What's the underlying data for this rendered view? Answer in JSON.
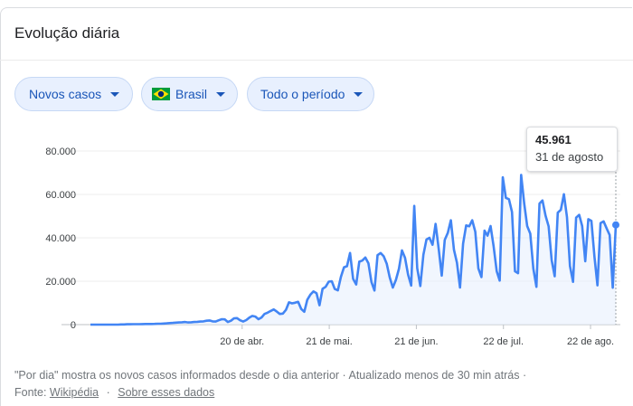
{
  "header": {
    "title": "Evolução diária"
  },
  "filters": {
    "metric_label": "Novos casos",
    "country_label": "Brasil",
    "period_label": "Todo o período",
    "flag_colors": {
      "green": "#009c3b",
      "yellow": "#ffdf00",
      "blue": "#002776"
    }
  },
  "tooltip": {
    "value": "45.961",
    "date": "31 de agosto"
  },
  "footer": {
    "note": "\"Por dia\" mostra os novos casos informados desde o dia anterior · Atualizado menos de 30 min atrás ·",
    "source_prefix": "Fonte:",
    "source_link": "Wikipédia",
    "separator": "·",
    "about_link": "Sobre esses dados"
  },
  "chart_data": {
    "type": "line",
    "line_color": "#4285f4",
    "fill_color": "#e8f0fe",
    "ylim": [
      0,
      80000
    ],
    "y_ticks": [
      0,
      20000,
      40000,
      60000,
      80000
    ],
    "y_tick_labels": [
      "0",
      "20.000",
      "40.000",
      "60.000",
      "80.000"
    ],
    "x_start_date": "2020-02-26",
    "x_ticks": [
      {
        "date": "2020-04-20",
        "label": "20 de abr."
      },
      {
        "date": "2020-05-21",
        "label": "21 de mai."
      },
      {
        "date": "2020-06-21",
        "label": "21 de jun."
      },
      {
        "date": "2020-07-22",
        "label": "22 de jul."
      },
      {
        "date": "2020-08-22",
        "label": "22 de ago."
      }
    ],
    "x_end_date": "2020-08-31",
    "highlight": {
      "date": "2020-08-31",
      "value": 45961
    },
    "series": [
      {
        "values": [
          0,
          0,
          0,
          0,
          0,
          0,
          0,
          0,
          0,
          0,
          100,
          100,
          150,
          150,
          200,
          200,
          200,
          250,
          300,
          300,
          300,
          350,
          400,
          400,
          500,
          600,
          700,
          800,
          900,
          1000,
          1100,
          1200,
          1000,
          1100,
          1200,
          1300,
          1400,
          1500,
          1800,
          1900,
          1500,
          1400,
          2000,
          2500,
          2400,
          1200,
          1800,
          2900,
          3000,
          2000,
          1400,
          2100,
          3200,
          4000,
          3700,
          2500,
          3300,
          4900,
          5500,
          6300,
          7000,
          6000,
          4900,
          5100,
          6800,
          10300,
          9800,
          10100,
          10500,
          7200,
          5900,
          11400,
          13800,
          15300,
          14500,
          8900,
          16500,
          17400,
          19800,
          20000,
          16400,
          15800,
          22000,
          26400,
          26900,
          33000,
          21100,
          18500,
          29000,
          29500,
          30900,
          28300,
          19600,
          15700,
          32000,
          33000,
          31500,
          28000,
          21700,
          17100,
          20600,
          25800,
          34200,
          30800,
          23000,
          18000,
          54700,
          26000,
          17800,
          32200,
          39200,
          40000,
          36800,
          46400,
          35100,
          22600,
          39000,
          42300,
          48100,
          34500,
          28600,
          17100,
          37300,
          45700,
          45300,
          48100,
          42800,
          25900,
          21900,
          43300,
          41000,
          45400,
          36000,
          24600,
          20300,
          67900,
          58400,
          57800,
          51900,
          24600,
          23700,
          69000,
          55800,
          45400,
          41900,
          25800,
          17400,
          55800,
          57200,
          50200,
          45300,
          29600,
          22300,
          51600,
          52900,
          60100,
          49500,
          27000,
          19700,
          49300,
          50600,
          45400,
          29200,
          48600,
          47800,
          31200,
          18100,
          46800,
          47600,
          44300,
          41300,
          17000,
          45961
        ]
      }
    ]
  }
}
